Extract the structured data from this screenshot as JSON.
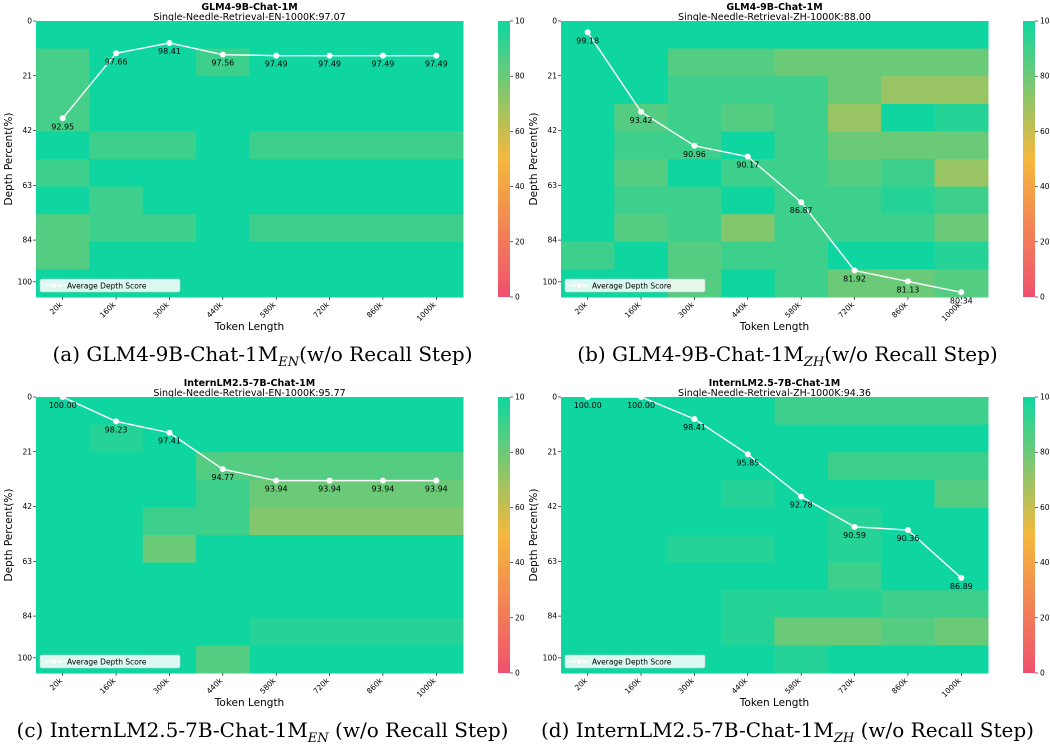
{
  "panels": [
    {
      "title": "GLM4-9B-Chat-1M",
      "subtitle": "Single-Needle-Retrieval-EN-1000K:97.07",
      "caption_main": "(a) GLM4-9B-Chat-1M",
      "caption_sub": "EN",
      "caption_tail": "(w/o Recall Step)"
    },
    {
      "title": "GLM4-9B-Chat-1M",
      "subtitle": "Single-Needle-Retrieval-ZH-1000K:88.00",
      "caption_main": "(b) GLM4-9B-Chat-1M",
      "caption_sub": "ZH",
      "caption_tail": "(w/o Recall Step)"
    },
    {
      "title": "InternLM2.5-7B-Chat-1M",
      "subtitle": "Single-Needle-Retrieval-EN-1000K:95.77",
      "caption_main": "(c) InternLM2.5-7B-Chat-1M",
      "caption_sub": "EN",
      "caption_tail": " (w/o Recall Step)"
    },
    {
      "title": "InternLM2.5-7B-Chat-1M",
      "subtitle": "Single-Needle-Retrieval-ZH-1000K:94.36",
      "caption_main": "(d) InternLM2.5-7B-Chat-1M",
      "caption_sub": "ZH",
      "caption_tail": " (w/o Recall Step)"
    }
  ],
  "colors": {
    "low": "#f0506e",
    "mid": "#f5b83c",
    "high": "#0fd6a0",
    "line": "#ffffff"
  },
  "chart_data": [
    {
      "type": "heatmap",
      "title": "GLM4-9B-Chat-1M",
      "subtitle": "Single-Needle-Retrieval-EN-1000K:97.07",
      "xlabel": "Token Length",
      "ylabel": "Depth Percent(%)",
      "x_ticks": [
        "20k",
        "160k",
        "300k",
        "440k",
        "580k",
        "720k",
        "860k",
        "1000k"
      ],
      "y_ticks": [
        "0",
        "21",
        "42",
        "63",
        "84",
        "100"
      ],
      "colorbar_ticks": [
        "0",
        "20",
        "40",
        "60",
        "80",
        "100"
      ],
      "legend": "Average Depth Score",
      "avg_scores": [
        92.95,
        97.66,
        98.41,
        97.56,
        97.49,
        97.49,
        97.49,
        97.49
      ],
      "grid": [
        [
          100,
          100,
          100,
          100,
          100,
          100,
          100,
          100
        ],
        [
          88,
          100,
          100,
          90,
          100,
          100,
          100,
          100
        ],
        [
          88,
          100,
          100,
          100,
          100,
          100,
          100,
          100
        ],
        [
          88,
          100,
          100,
          100,
          100,
          100,
          100,
          100
        ],
        [
          100,
          90,
          90,
          100,
          90,
          90,
          90,
          90
        ],
        [
          90,
          100,
          100,
          100,
          100,
          100,
          100,
          100
        ],
        [
          100,
          90,
          100,
          100,
          100,
          100,
          100,
          100
        ],
        [
          85,
          90,
          90,
          100,
          90,
          90,
          90,
          90
        ],
        [
          85,
          100,
          100,
          100,
          100,
          100,
          100,
          100
        ],
        [
          100,
          100,
          100,
          100,
          100,
          100,
          100,
          100
        ]
      ]
    },
    {
      "type": "heatmap",
      "title": "GLM4-9B-Chat-1M",
      "subtitle": "Single-Needle-Retrieval-ZH-1000K:88.00",
      "xlabel": "Token Length",
      "ylabel": "Depth Percent(%)",
      "x_ticks": [
        "20k",
        "160k",
        "300k",
        "440k",
        "580k",
        "720k",
        "860k",
        "1000k"
      ],
      "y_ticks": [
        "0",
        "21",
        "42",
        "63",
        "84",
        "100"
      ],
      "colorbar_ticks": [
        "0",
        "20",
        "40",
        "60",
        "80",
        "100"
      ],
      "legend": "Average Depth Score",
      "avg_scores": [
        99.18,
        93.42,
        90.96,
        90.17,
        86.87,
        81.92,
        81.13,
        80.34
      ],
      "grid": [
        [
          100,
          100,
          100,
          100,
          100,
          100,
          100,
          100
        ],
        [
          100,
          100,
          85,
          85,
          80,
          80,
          80,
          80
        ],
        [
          100,
          100,
          90,
          90,
          90,
          80,
          70,
          70
        ],
        [
          100,
          85,
          90,
          85,
          90,
          70,
          100,
          95
        ],
        [
          100,
          90,
          90,
          100,
          90,
          80,
          80,
          80
        ],
        [
          100,
          85,
          100,
          90,
          90,
          85,
          90,
          70
        ],
        [
          100,
          90,
          90,
          100,
          90,
          90,
          95,
          90
        ],
        [
          100,
          85,
          90,
          75,
          90,
          90,
          90,
          80
        ],
        [
          90,
          100,
          85,
          90,
          90,
          100,
          100,
          95
        ],
        [
          100,
          100,
          85,
          100,
          90,
          80,
          80,
          85
        ]
      ]
    },
    {
      "type": "heatmap",
      "title": "InternLM2.5-7B-Chat-1M",
      "subtitle": "Single-Needle-Retrieval-EN-1000K:95.77",
      "xlabel": "Token Length",
      "ylabel": "Depth Percent(%)",
      "x_ticks": [
        "20k",
        "160k",
        "300k",
        "440k",
        "580k",
        "720k",
        "860k",
        "1000k"
      ],
      "y_ticks": [
        "0",
        "21",
        "42",
        "63",
        "84",
        "100"
      ],
      "colorbar_ticks": [
        "0",
        "20",
        "40",
        "60",
        "80",
        "100"
      ],
      "legend": "Average Depth Score",
      "avg_scores": [
        100.0,
        98.23,
        97.41,
        94.77,
        93.94,
        93.94,
        93.94,
        93.94
      ],
      "grid": [
        [
          100,
          100,
          100,
          100,
          100,
          100,
          100,
          100
        ],
        [
          100,
          95,
          100,
          100,
          100,
          100,
          100,
          100
        ],
        [
          100,
          100,
          100,
          85,
          85,
          85,
          85,
          85
        ],
        [
          100,
          100,
          100,
          90,
          80,
          80,
          80,
          80
        ],
        [
          100,
          100,
          90,
          90,
          75,
          75,
          75,
          75
        ],
        [
          100,
          100,
          80,
          100,
          100,
          100,
          100,
          100
        ],
        [
          100,
          100,
          100,
          100,
          100,
          100,
          100,
          100
        ],
        [
          100,
          100,
          100,
          100,
          100,
          100,
          100,
          100
        ],
        [
          100,
          100,
          100,
          100,
          95,
          95,
          95,
          95
        ],
        [
          100,
          100,
          100,
          85,
          100,
          100,
          100,
          100
        ]
      ]
    },
    {
      "type": "heatmap",
      "title": "InternLM2.5-7B-Chat-1M",
      "subtitle": "Single-Needle-Retrieval-ZH-1000K:94.36",
      "xlabel": "Token Length",
      "ylabel": "Depth Percent(%)",
      "x_ticks": [
        "20k",
        "160k",
        "300k",
        "440k",
        "580k",
        "720k",
        "860k",
        "1000k"
      ],
      "y_ticks": [
        "0",
        "21",
        "42",
        "63",
        "84",
        "100"
      ],
      "colorbar_ticks": [
        "0",
        "20",
        "40",
        "60",
        "80",
        "100"
      ],
      "legend": "Average Depth Score",
      "avg_scores": [
        100.0,
        100.0,
        98.41,
        95.85,
        92.78,
        90.59,
        90.36,
        86.89
      ],
      "grid": [
        [
          100,
          100,
          100,
          100,
          90,
          90,
          90,
          90
        ],
        [
          100,
          100,
          100,
          100,
          100,
          100,
          100,
          100
        ],
        [
          100,
          100,
          100,
          100,
          100,
          90,
          90,
          90
        ],
        [
          100,
          100,
          100,
          95,
          100,
          100,
          100,
          85
        ],
        [
          100,
          100,
          100,
          100,
          100,
          95,
          100,
          100
        ],
        [
          100,
          100,
          95,
          95,
          100,
          95,
          100,
          100
        ],
        [
          100,
          100,
          100,
          100,
          100,
          90,
          100,
          100
        ],
        [
          100,
          100,
          100,
          95,
          95,
          95,
          90,
          90
        ],
        [
          100,
          100,
          100,
          95,
          80,
          80,
          85,
          80
        ],
        [
          100,
          100,
          100,
          100,
          95,
          100,
          100,
          100
        ]
      ]
    }
  ]
}
